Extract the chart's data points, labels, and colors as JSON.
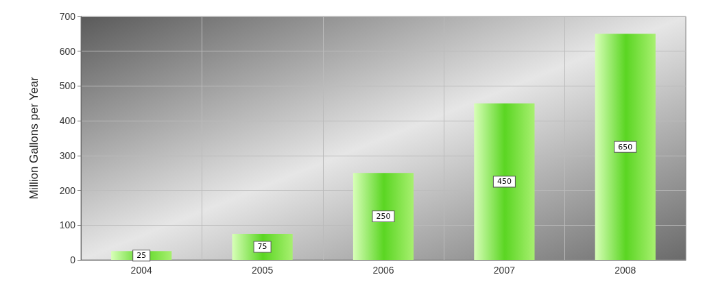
{
  "chart_data": {
    "type": "bar",
    "ylabel": "Million Gallons per Year",
    "categories": [
      "2004",
      "2005",
      "2006",
      "2007",
      "2008"
    ],
    "values": [
      25,
      75,
      250,
      450,
      650
    ],
    "color": "#5cd624",
    "ylim": [
      0,
      700
    ],
    "yticks": [
      0,
      100,
      200,
      300,
      400,
      500,
      600,
      700
    ],
    "grid": true,
    "data_labels": true
  }
}
